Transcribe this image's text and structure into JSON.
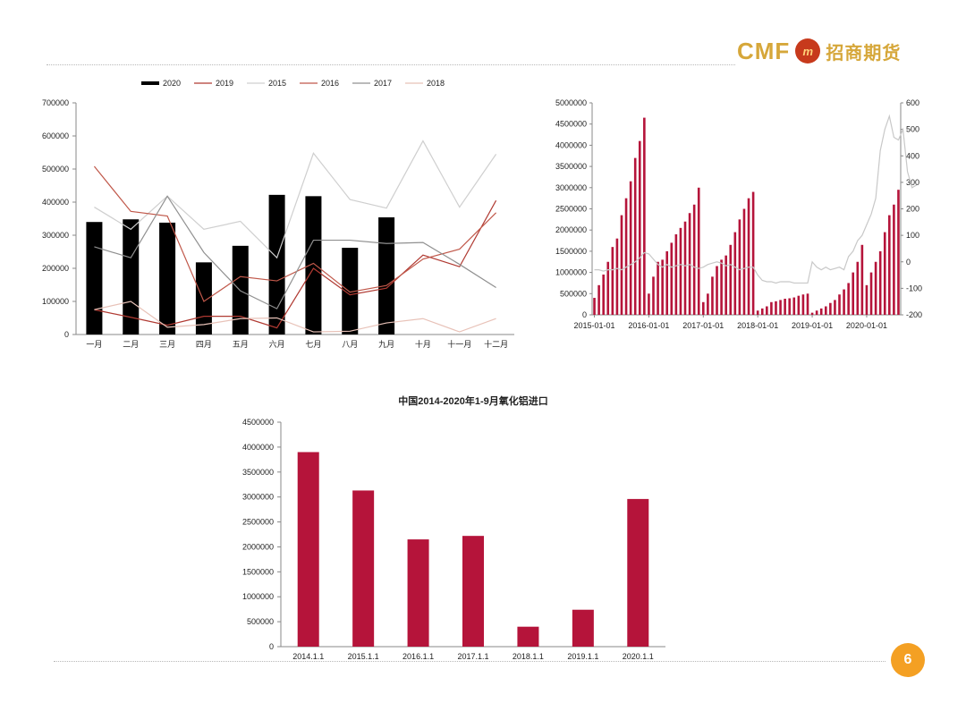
{
  "logo": {
    "latin": "CMF",
    "mark": "m",
    "chinese": "招商期货",
    "colors": {
      "gold": "#d6a73a",
      "red": "#c73a1c"
    }
  },
  "page_number": "6",
  "chart_data": [
    {
      "type": "bar+line",
      "title": "",
      "categories": [
        "一月",
        "二月",
        "三月",
        "四月",
        "五月",
        "六月",
        "七月",
        "八月",
        "九月",
        "十月",
        "十一月",
        "十二月"
      ],
      "ylim": [
        0,
        700000
      ],
      "yticks": [
        "0",
        "100000",
        "200000",
        "300000",
        "400000",
        "500000",
        "600000",
        "700000"
      ],
      "legend": {
        "placement": "top",
        "entries": [
          "2020",
          "2019",
          "2015",
          "2016",
          "2017",
          "2018"
        ]
      },
      "series": [
        {
          "name": "2020",
          "kind": "bar",
          "color": "#000000",
          "values": [
            340000,
            348000,
            338000,
            218000,
            268000,
            422000,
            418000,
            262000,
            354000,
            null,
            null,
            null
          ]
        },
        {
          "name": "2019",
          "kind": "line",
          "color": "#b03a32",
          "values": [
            75000,
            52000,
            28000,
            55000,
            55000,
            20000,
            200000,
            120000,
            140000,
            240000,
            205000,
            405000
          ]
        },
        {
          "name": "2015",
          "kind": "line",
          "color": "#cfcfcf",
          "values": [
            385000,
            318000,
            418000,
            318000,
            342000,
            232000,
            548000,
            408000,
            382000,
            585000,
            385000,
            545000
          ]
        },
        {
          "name": "2016",
          "kind": "line",
          "color": "#c0584a",
          "values": [
            508000,
            372000,
            358000,
            100000,
            175000,
            162000,
            215000,
            128000,
            148000,
            228000,
            258000,
            368000
          ]
        },
        {
          "name": "2017",
          "kind": "line",
          "color": "#909090",
          "values": [
            265000,
            232000,
            418000,
            248000,
            132000,
            78000,
            285000,
            285000,
            275000,
            278000,
            212000,
            142000
          ]
        },
        {
          "name": "2018",
          "kind": "line",
          "color": "#e8c2b8",
          "values": [
            75000,
            100000,
            22000,
            30000,
            48000,
            50000,
            8000,
            10000,
            35000,
            48000,
            8000,
            48000
          ]
        }
      ]
    },
    {
      "type": "bar+line",
      "title": "",
      "x_ticks": [
        "2015-01-01",
        "2016-01-01",
        "2017-01-01",
        "2018-01-01",
        "2019-01-01",
        "2020-01-01"
      ],
      "ylim": [
        0,
        5000000
      ],
      "yticks": [
        "0",
        "500000",
        "1000000",
        "1500000",
        "2000000",
        "2500000",
        "3000000",
        "3500000",
        "4000000",
        "4500000",
        "5000000"
      ],
      "y2lim": [
        -200,
        600
      ],
      "y2ticks": [
        "-200",
        "-100",
        "0",
        "100",
        "200",
        "300",
        "400",
        "500",
        "600"
      ],
      "series": [
        {
          "name": "",
          "kind": "bar",
          "axis": "left",
          "color": "#b5143a",
          "values": [
            400000,
            700000,
            950000,
            1250000,
            1600000,
            1800000,
            2350000,
            2750000,
            3150000,
            3700000,
            4100000,
            4650000,
            500000,
            900000,
            1250000,
            1300000,
            1500000,
            1700000,
            1900000,
            2050000,
            2200000,
            2400000,
            2600000,
            3000000,
            300000,
            500000,
            900000,
            1150000,
            1300000,
            1400000,
            1650000,
            1950000,
            2250000,
            2500000,
            2750000,
            2900000,
            100000,
            150000,
            200000,
            300000,
            320000,
            350000,
            380000,
            390000,
            410000,
            450000,
            480000,
            500000,
            50000,
            100000,
            150000,
            200000,
            280000,
            350000,
            480000,
            600000,
            750000,
            1000000,
            1250000,
            1650000,
            700000,
            1000000,
            1250000,
            1500000,
            1950000,
            2350000,
            2600000,
            2950000
          ]
        },
        {
          "name": "",
          "kind": "line",
          "axis": "right",
          "color": "#c8c8c8",
          "values": [
            -30,
            -30,
            -35,
            -30,
            -30,
            -25,
            -30,
            -20,
            -10,
            0,
            15,
            35,
            30,
            10,
            -10,
            -20,
            -10,
            -20,
            -15,
            -10,
            -15,
            -10,
            -20,
            -25,
            -20,
            -10,
            -5,
            0,
            -5,
            -15,
            -10,
            -20,
            -30,
            -25,
            -20,
            -20,
            -50,
            -70,
            -75,
            -75,
            -80,
            -75,
            -75,
            -75,
            -80,
            -80,
            -80,
            -80,
            0,
            -20,
            -30,
            -20,
            -30,
            -25,
            -20,
            -30,
            20,
            40,
            80,
            100,
            140,
            180,
            240,
            420,
            500,
            550,
            470,
            460,
            500,
            340,
            280,
            290
          ]
        }
      ]
    },
    {
      "type": "bar",
      "title": "中国2014-2020年1-9月氧化铝进口",
      "categories": [
        "2014.1.1",
        "2015.1.1",
        "2016.1.1",
        "2017.1.1",
        "2018.1.1",
        "2019.1.1",
        "2020.1.1"
      ],
      "values": [
        3900000,
        3130000,
        2150000,
        2220000,
        400000,
        740000,
        2960000
      ],
      "ylim": [
        0,
        4500000
      ],
      "yticks": [
        "0",
        "500000",
        "1000000",
        "1500000",
        "2000000",
        "2500000",
        "3000000",
        "3500000",
        "4000000",
        "4500000"
      ],
      "color": "#b5143a"
    }
  ]
}
